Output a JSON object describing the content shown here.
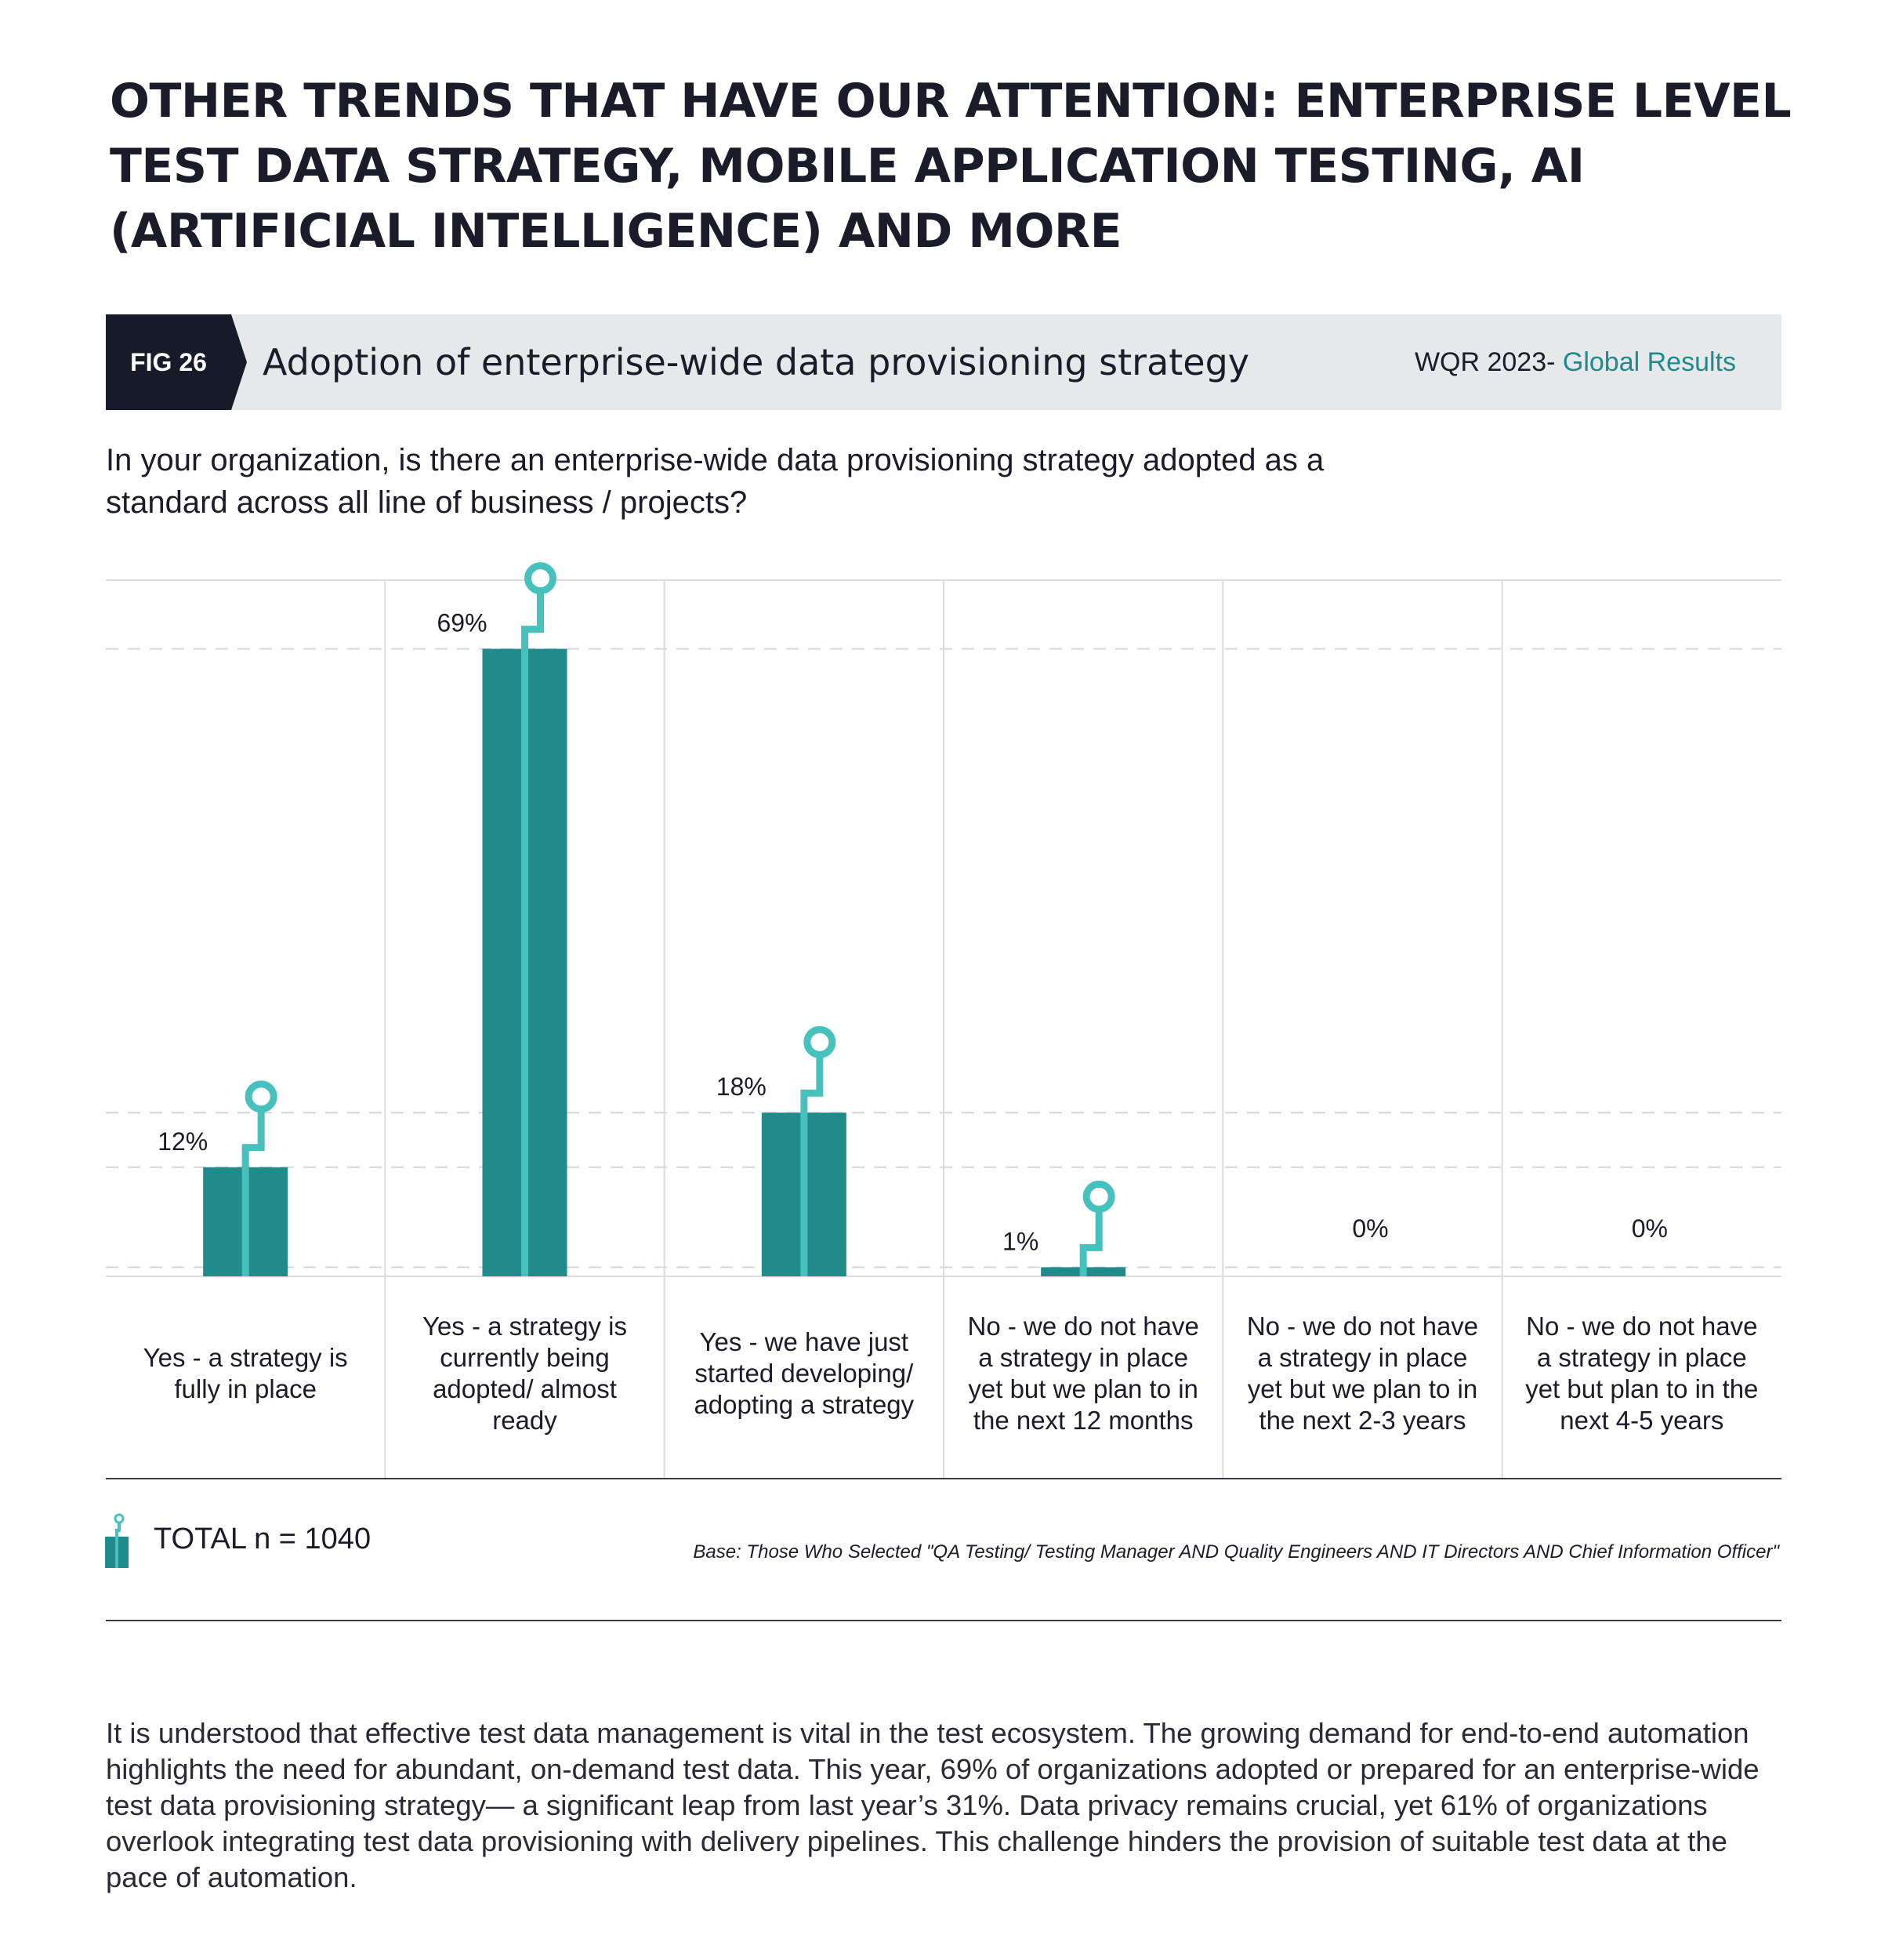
{
  "page": {
    "title": "OTHER TRENDS THAT HAVE OUR ATTENTION: ENTERPRISE LEVEL TEST DATA STRATEGY, MOBILE APPLICATION TESTING, AI (ARTIFICIAL INTELLIGENCE) AND MORE",
    "fig_tag": "FIG 26",
    "fig_title": "Adoption of enterprise-wide data provisioning strategy",
    "source_prefix": "WQR 2023- ",
    "source_accent": "Global Results",
    "question": "In your organization, is there an enterprise-wide data provisioning strategy adopted as a standard across all line of business / projects?",
    "legend": "TOTAL n = 1040",
    "base_note": "Base: Those Who Selected \"QA Testing/ Testing Manager AND Quality Engineers AND IT Directors AND Chief Information Officer\"",
    "body": "It is understood that effective test data management is vital in the test ecosystem. The growing demand for end-to-end automation highlights the need for abundant, on-demand test data. This year, 69% of organizations adopted or prepared for an enterprise-wide test data provisioning strategy— a significant leap from last year’s 31%. Data privacy remains crucial, yet 61% of organizations overlook integrating test data provisioning with delivery pipelines. This challenge hinders the provision of suitable test data at the pace of automation."
  },
  "chart_data": {
    "type": "bar",
    "title": "Adoption of enterprise-wide data provisioning strategy",
    "categories": [
      "Yes - a strategy is fully in place",
      "Yes - a strategy is currently being adopted/ almost ready",
      "Yes - we have just started developing/ adopting a strategy",
      "No - we do not have a strategy in place yet but we plan to in the next 12 months",
      "No - we do not have a strategy in place yet but we plan to in the next 2-3 years",
      "No - we do not have a strategy in place yet but plan to in the next 4-5 years"
    ],
    "series": [
      {
        "name": "TOTAL n = 1040",
        "values": [
          12,
          69,
          18,
          1,
          0,
          0
        ]
      }
    ],
    "value_labels": [
      "12%",
      "69%",
      "18%",
      "1%",
      "0%",
      "0%"
    ],
    "unit": "%",
    "ylim": [
      0,
      100
    ],
    "grid": true,
    "legend_position": "bottom-left",
    "colors": {
      "bar": "#218a8b",
      "marker": "#46c1bd",
      "grid": "#d6d6d6",
      "text": "#1b1b2a"
    }
  }
}
